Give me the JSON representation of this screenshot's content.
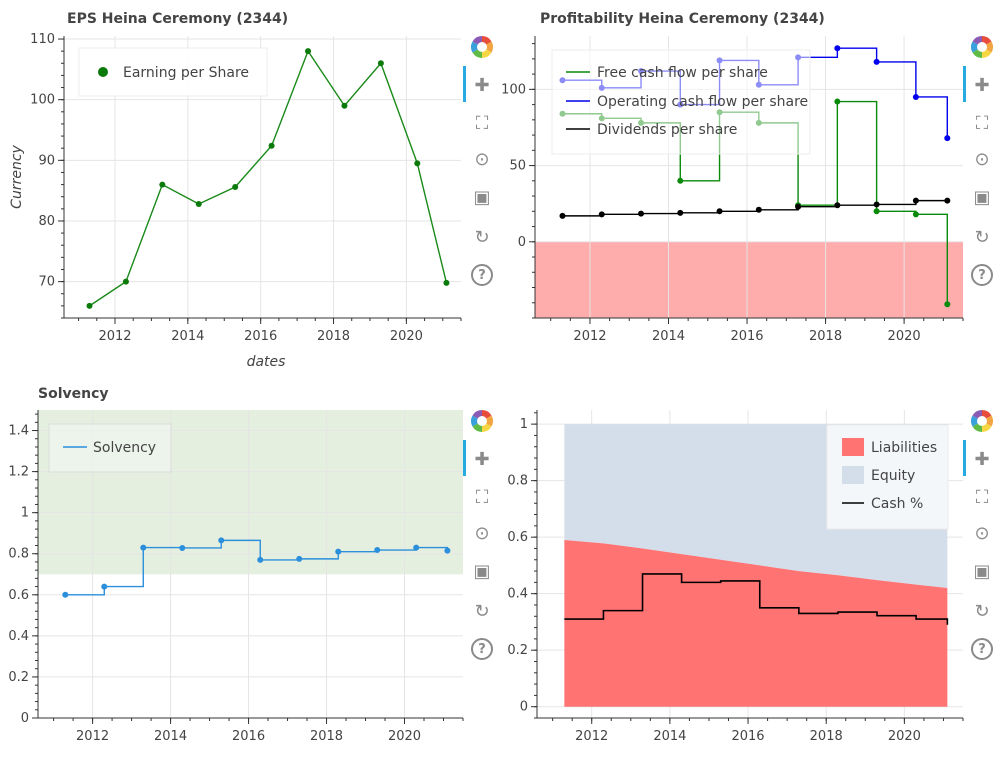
{
  "panels": {
    "eps": {
      "title": "EPS Heina Ceremony (2344)",
      "legend": "Earning per Share",
      "xlabel": "dates",
      "ylabel": "Currency"
    },
    "profitability": {
      "title": "Profitability Heina Ceremony (2344)",
      "legend_fcf": "Free cash flow per share",
      "legend_ocf": "Operating cash flow per share",
      "legend_div": "Dividends per share"
    },
    "solvency": {
      "title": "Solvency",
      "legend": "Solvency"
    },
    "structure": {
      "legend_liab": "Liabilities",
      "legend_equity": "Equity",
      "legend_cash": "Cash %"
    }
  },
  "toolbar": {
    "tools": [
      "bokeh-logo-icon",
      "pan-icon",
      "box-zoom-icon",
      "wheel-zoom-icon",
      "save-icon",
      "reset-icon",
      "help-icon"
    ]
  },
  "colors": {
    "eps": "#1a8a1a",
    "fcf": "#0a8a0a",
    "ocf": "#0000ee",
    "div": "#000000",
    "solvency": "#2b8fdc",
    "liabilities": "#ff7373",
    "equity": "#d4deea",
    "danger_band": "#ffacac",
    "safe_band": "#e4efe0"
  },
  "chart_data": [
    {
      "type": "line",
      "title": "EPS Heina Ceremony (2344)",
      "xlabel": "dates",
      "ylabel": "Currency",
      "series": [
        {
          "name": "Earning per Share",
          "x": [
            2011.3,
            2012.3,
            2013.3,
            2014.3,
            2015.3,
            2016.3,
            2017.3,
            2018.3,
            2019.3,
            2020.3,
            2021.1
          ],
          "values": [
            66,
            70,
            86,
            82.8,
            85.6,
            92.4,
            108,
            99,
            106,
            89.5,
            69.8
          ]
        }
      ],
      "xticks": [
        2012,
        2014,
        2016,
        2018,
        2020
      ],
      "yticks": [
        70,
        80,
        90,
        100,
        110
      ],
      "xlim": [
        2010.6,
        2021.5
      ],
      "ylim": [
        64,
        110.5
      ],
      "grid": true,
      "legend_position": "top-left"
    },
    {
      "type": "line",
      "title": "Profitability Heina Ceremony (2344)",
      "xlabel": "",
      "ylabel": "",
      "series": [
        {
          "name": "Free cash flow per share",
          "x": [
            2011.3,
            2012.3,
            2013.3,
            2014.3,
            2015.3,
            2016.3,
            2017.3,
            2018.3,
            2019.3,
            2020.3,
            2021.1
          ],
          "values": [
            84,
            81,
            78,
            40,
            85,
            78,
            24,
            92,
            20,
            18,
            -41
          ]
        },
        {
          "name": "Operating cash flow per share",
          "x": [
            2011.3,
            2012.3,
            2013.3,
            2014.3,
            2015.3,
            2016.3,
            2017.3,
            2018.3,
            2019.3,
            2020.3,
            2021.1
          ],
          "values": [
            106,
            101,
            112,
            90,
            119,
            103,
            121,
            127,
            118,
            95,
            68
          ]
        },
        {
          "name": "Dividends per share",
          "x": [
            2011.3,
            2012.3,
            2013.3,
            2014.3,
            2015.3,
            2016.3,
            2017.3,
            2018.3,
            2019.3,
            2020.3,
            2021.1
          ],
          "values": [
            17,
            18,
            18.5,
            19,
            20,
            21,
            23,
            24,
            24.5,
            27,
            27
          ]
        }
      ],
      "xticks": [
        2012,
        2014,
        2016,
        2018,
        2020
      ],
      "yticks": [
        0,
        50,
        100
      ],
      "xlim": [
        2010.6,
        2021.5
      ],
      "ylim": [
        -50,
        135
      ],
      "negative_band": [
        -50,
        0
      ],
      "grid": true,
      "legend_position": "top-left"
    },
    {
      "type": "line",
      "title": "Solvency",
      "xlabel": "",
      "ylabel": "",
      "series": [
        {
          "name": "Solvency",
          "x": [
            2011.3,
            2012.3,
            2013.3,
            2014.3,
            2015.3,
            2016.3,
            2017.3,
            2018.3,
            2019.3,
            2020.3,
            2021.1
          ],
          "values": [
            0.6,
            0.64,
            0.83,
            0.828,
            0.865,
            0.77,
            0.775,
            0.81,
            0.818,
            0.83,
            0.815
          ]
        }
      ],
      "xticks": [
        2012,
        2014,
        2016,
        2018,
        2020
      ],
      "yticks": [
        0,
        0.2,
        0.4,
        0.6,
        0.8,
        1,
        1.2,
        1.4
      ],
      "xlim": [
        2010.6,
        2021.5
      ],
      "ylim": [
        0,
        1.5
      ],
      "safe_band": [
        0.7,
        1.5
      ],
      "grid": true,
      "legend_position": "top-left"
    },
    {
      "type": "area",
      "title": "",
      "xlabel": "",
      "ylabel": "",
      "series": [
        {
          "name": "Liabilities",
          "x": [
            2011.3,
            2012.3,
            2013.3,
            2014.3,
            2015.3,
            2016.3,
            2017.3,
            2018.3,
            2019.3,
            2020.3,
            2021.1
          ],
          "values": [
            0.59,
            0.578,
            0.56,
            0.54,
            0.52,
            0.5,
            0.48,
            0.465,
            0.448,
            0.432,
            0.42
          ]
        },
        {
          "name": "Equity",
          "x": [
            2011.3,
            2012.3,
            2013.3,
            2014.3,
            2015.3,
            2016.3,
            2017.3,
            2018.3,
            2019.3,
            2020.3,
            2021.1
          ],
          "values": [
            0.41,
            0.422,
            0.44,
            0.46,
            0.48,
            0.5,
            0.52,
            0.535,
            0.552,
            0.568,
            0.58
          ]
        },
        {
          "name": "Cash %",
          "x": [
            2011.3,
            2012.3,
            2013.3,
            2014.3,
            2015.3,
            2016.3,
            2017.3,
            2018.3,
            2019.3,
            2020.3,
            2021.1
          ],
          "values": [
            0.31,
            0.34,
            0.47,
            0.44,
            0.445,
            0.35,
            0.33,
            0.335,
            0.322,
            0.31,
            0.29
          ]
        }
      ],
      "xticks": [
        2012,
        2014,
        2016,
        2018,
        2020
      ],
      "yticks": [
        0,
        0.2,
        0.4,
        0.6,
        0.8,
        1
      ],
      "xlim": [
        2010.6,
        2021.5
      ],
      "ylim": [
        -0.04,
        1.05
      ],
      "grid": true,
      "legend_position": "top-right"
    }
  ]
}
